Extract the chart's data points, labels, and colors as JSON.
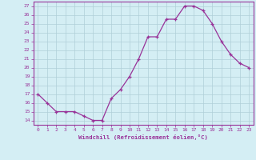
{
  "x": [
    0,
    1,
    2,
    3,
    4,
    5,
    6,
    7,
    8,
    9,
    10,
    11,
    12,
    13,
    14,
    15,
    16,
    17,
    18,
    19,
    20,
    21,
    22,
    23
  ],
  "y": [
    17,
    16,
    15,
    15,
    15,
    14.5,
    14,
    14,
    16.5,
    17.5,
    19,
    21,
    23.5,
    23.5,
    25.5,
    25.5,
    27,
    27,
    26.5,
    25,
    23,
    21.5,
    20.5,
    20
  ],
  "line_color": "#993399",
  "marker": "+",
  "background_color": "#d4eef4",
  "grid_color": "#b0cfd8",
  "xlabel": "Windchill (Refroidissement éolien,°C)",
  "ylabel_ticks": [
    14,
    15,
    16,
    17,
    18,
    19,
    20,
    21,
    22,
    23,
    24,
    25,
    26,
    27
  ],
  "xlim": [
    -0.5,
    23.5
  ],
  "ylim": [
    13.5,
    27.5
  ],
  "title_color": "#993399",
  "font_name": "monospace"
}
